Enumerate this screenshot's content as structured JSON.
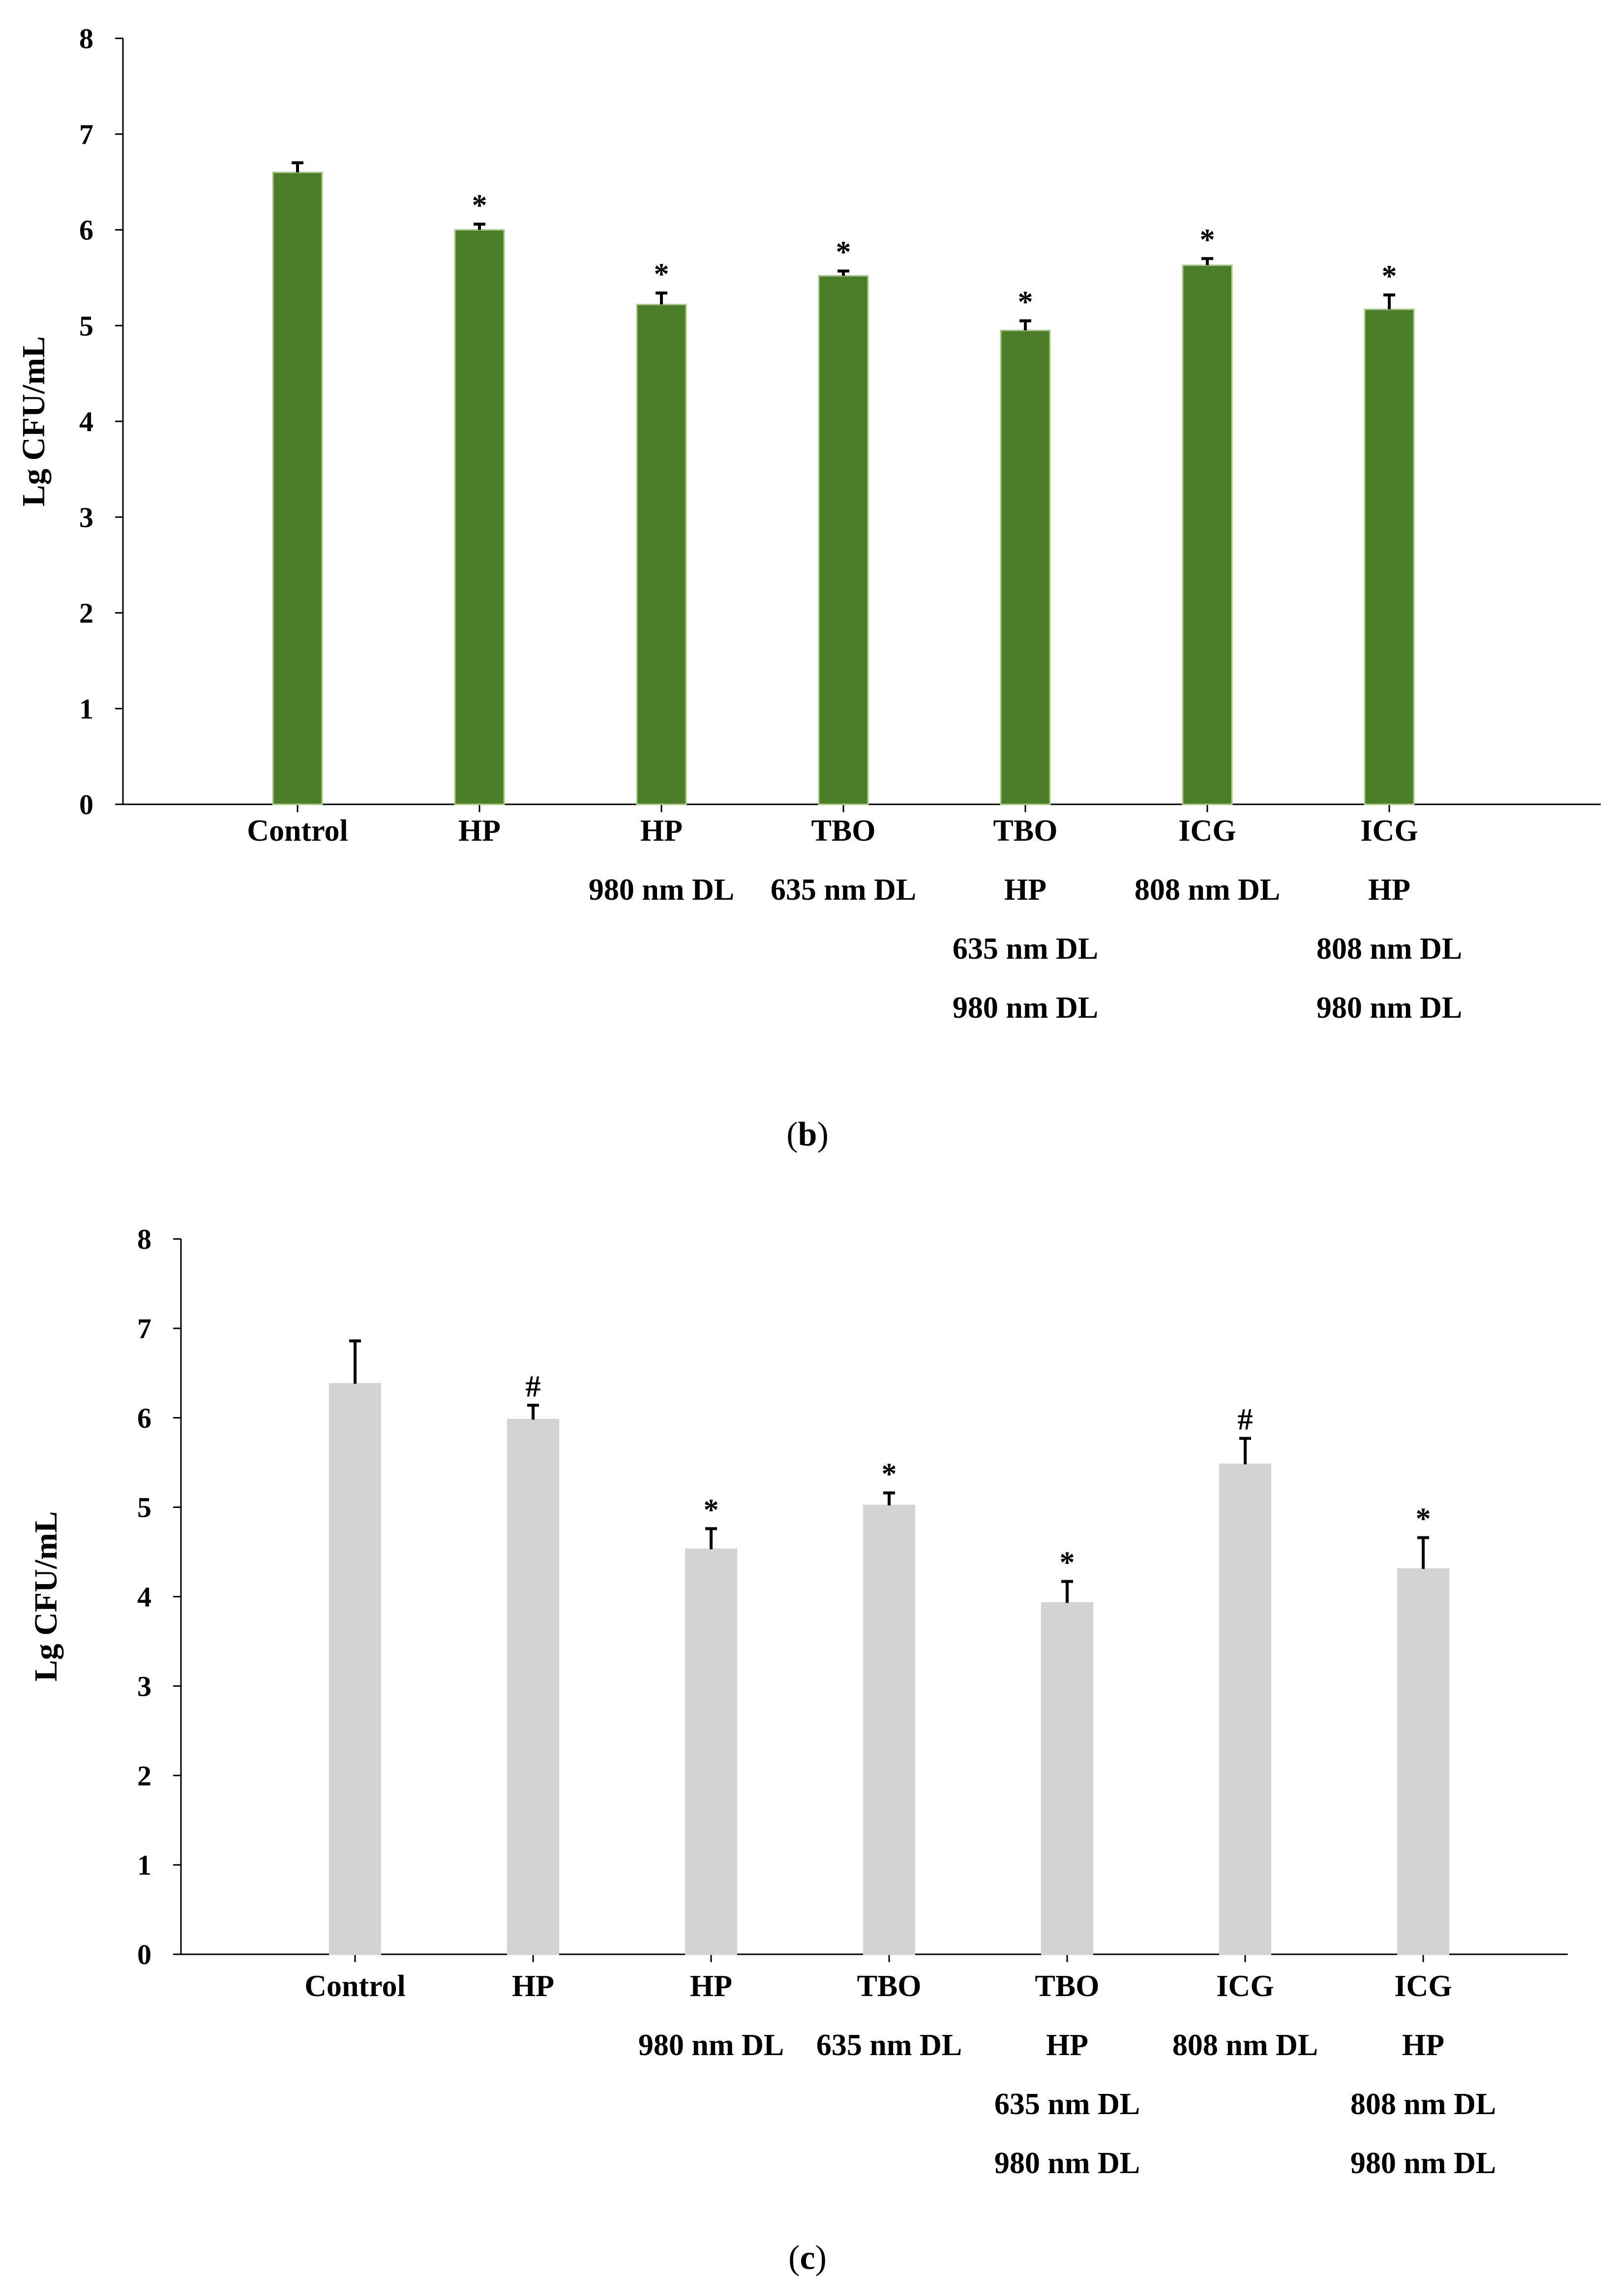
{
  "chart_data": [
    {
      "type": "bar",
      "caption": "b",
      "caption_open": "(",
      "caption_close": ")",
      "title": "",
      "xlabel": "",
      "ylabel": "Lg CFU/mL",
      "ylim": [
        0,
        8
      ],
      "yticks": [
        "0",
        "1",
        "2",
        "3",
        "4",
        "5",
        "6",
        "7",
        "8"
      ],
      "grid": false,
      "bar_color": "#4a7d26",
      "bar_edge": "#a9c98a",
      "categories": [
        [
          "Control"
        ],
        [
          "HP"
        ],
        [
          "HP",
          "980 nm DL"
        ],
        [
          "TBO",
          "635 nm DL"
        ],
        [
          "TBO",
          "HP",
          "635 nm DL",
          "980 nm DL"
        ],
        [
          "ICG",
          "808 nm DL"
        ],
        [
          "ICG",
          "HP",
          "808 nm DL",
          "980 nm DL"
        ]
      ],
      "values": [
        6.6,
        6.0,
        5.22,
        5.52,
        4.95,
        5.63,
        5.17
      ],
      "errors": [
        0.1,
        0.06,
        0.12,
        0.05,
        0.1,
        0.07,
        0.15
      ],
      "markers": [
        "",
        "*",
        "*",
        "*",
        "*",
        "*",
        "*"
      ]
    },
    {
      "type": "bar",
      "caption": "c",
      "caption_open": "(",
      "caption_close": ")",
      "title": "",
      "xlabel": "",
      "ylabel": "Lg CFU/mL",
      "ylim": [
        0,
        8
      ],
      "yticks": [
        "0",
        "1",
        "2",
        "3",
        "4",
        "5",
        "6",
        "7",
        "8"
      ],
      "grid": false,
      "bar_color": "#d3d3d3",
      "bar_edge": "#d3d3d3",
      "categories": [
        [
          "Control"
        ],
        [
          "HP"
        ],
        [
          "HP",
          "980 nm DL"
        ],
        [
          "TBO",
          "635 nm DL"
        ],
        [
          "TBO",
          "HP",
          "635 nm DL",
          "980 nm DL"
        ],
        [
          "ICG",
          "808 nm DL"
        ],
        [
          "ICG",
          "HP",
          "808 nm DL",
          "980 nm DL"
        ]
      ],
      "values": [
        6.38,
        5.98,
        4.53,
        5.02,
        3.93,
        5.48,
        4.31
      ],
      "errors": [
        0.48,
        0.16,
        0.23,
        0.14,
        0.24,
        0.29,
        0.35
      ],
      "markers": [
        "",
        "#",
        "*",
        "*",
        "*",
        "#",
        "*"
      ]
    }
  ]
}
